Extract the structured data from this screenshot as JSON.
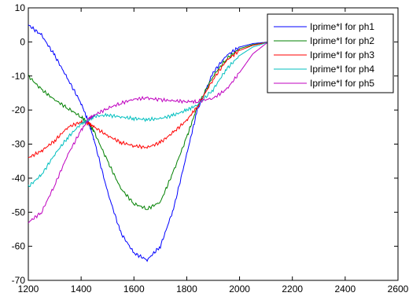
{
  "chart_data": {
    "type": "line",
    "title": "",
    "xlabel": "",
    "ylabel": "",
    "xlim": [
      1200,
      2600
    ],
    "ylim": [
      -70,
      10
    ],
    "xticks": [
      1200,
      1400,
      1600,
      1800,
      2000,
      2200,
      2400,
      2600
    ],
    "yticks": [
      10,
      0,
      -10,
      -20,
      -30,
      -40,
      -50,
      -60,
      -70
    ],
    "grid": false,
    "legend_position": "top-right",
    "x": [
      1200,
      1250,
      1300,
      1350,
      1400,
      1430,
      1450,
      1500,
      1550,
      1600,
      1650,
      1700,
      1750,
      1800,
      1840,
      1900,
      1950,
      2000,
      2050,
      2100,
      2115
    ],
    "series": [
      {
        "name": "Iprime*I for ph1",
        "color": "#0000ff",
        "values": [
          5,
          2,
          -4,
          -11,
          -18,
          -24,
          -29,
          -44,
          -56,
          -62,
          -64,
          -60,
          -49,
          -33,
          -20,
          -9,
          -4,
          -1.5,
          -0.5,
          -0.1,
          0
        ]
      },
      {
        "name": "Iprime*I for ph2",
        "color": "#008000",
        "values": [
          -10,
          -14,
          -17,
          -19.5,
          -22,
          -24,
          -26.5,
          -35,
          -43,
          -47.5,
          -49,
          -47,
          -38,
          -28,
          -19,
          -10,
          -5,
          -2,
          -0.8,
          -0.2,
          0
        ]
      },
      {
        "name": "Iprime*I for ph3",
        "color": "#ff0000",
        "values": [
          -34,
          -32,
          -29,
          -25,
          -23.5,
          -24,
          -25,
          -27.5,
          -29.5,
          -30.5,
          -31,
          -29.5,
          -26.5,
          -23,
          -19,
          -11,
          -5.5,
          -2.5,
          -1,
          -0.2,
          0
        ]
      },
      {
        "name": "Iprime*I for ph4",
        "color": "#00bfbf",
        "values": [
          -42.5,
          -39,
          -33,
          -28,
          -24,
          -23,
          -21.8,
          -21.5,
          -22,
          -22.5,
          -22.8,
          -22.5,
          -21.5,
          -20,
          -18.5,
          -14,
          -8,
          -4,
          -1.5,
          -0.3,
          0
        ]
      },
      {
        "name": "Iprime*I for ph5",
        "color": "#bf00bf",
        "values": [
          -53,
          -50,
          -42,
          -33,
          -26,
          -22.5,
          -21.5,
          -19.5,
          -18,
          -16.8,
          -16.5,
          -17,
          -17.3,
          -17.5,
          -17.5,
          -16.5,
          -14,
          -9,
          -3.5,
          -0.5,
          0
        ]
      }
    ]
  }
}
